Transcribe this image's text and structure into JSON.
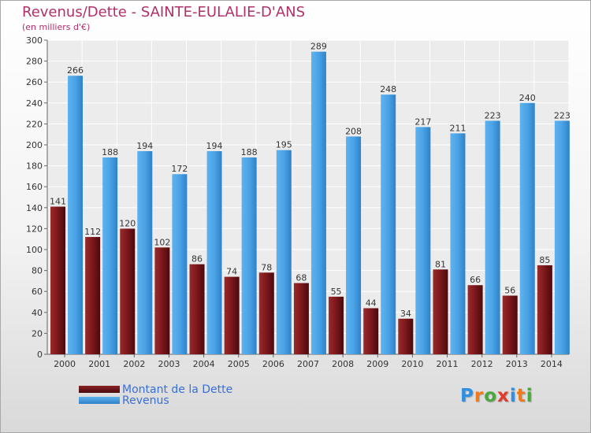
{
  "header": {
    "title": "Revenus/Dette - SAINTE-EULALIE-D'ANS",
    "subtitle": "(en milliers d'€)"
  },
  "colors": {
    "title": "#b0306a",
    "dette": "#6b1216",
    "revenus": "#3d95dc",
    "legend_text": "#3a6fd8"
  },
  "logo": {
    "text": "Proxiti",
    "letter_colors": [
      "#2f8fe0",
      "#f07a1a",
      "#48a83a",
      "#e03a2a",
      "#2f8fe0",
      "#f07a1a",
      "#48a83a"
    ]
  },
  "chart_data": {
    "type": "bar",
    "title": "Revenus/Dette - SAINTE-EULALIE-D'ANS",
    "subtitle": "(en milliers d'€)",
    "categories": [
      "2000",
      "2001",
      "2002",
      "2003",
      "2004",
      "2005",
      "2006",
      "2007",
      "2008",
      "2009",
      "2010",
      "2011",
      "2012",
      "2013",
      "2014"
    ],
    "series": [
      {
        "name": "Montant de la Dette",
        "values": [
          141,
          112,
          120,
          102,
          86,
          74,
          78,
          68,
          55,
          44,
          34,
          81,
          66,
          56,
          85
        ]
      },
      {
        "name": "Revenus",
        "values": [
          266,
          188,
          194,
          172,
          194,
          188,
          195,
          289,
          208,
          248,
          217,
          211,
          223,
          240,
          223
        ]
      }
    ],
    "ylim": [
      0,
      300
    ],
    "yticks": [
      0,
      20,
      40,
      60,
      80,
      100,
      120,
      140,
      160,
      180,
      200,
      220,
      240,
      260,
      280,
      300
    ],
    "grid": true,
    "legend_position": "bottom-left"
  }
}
